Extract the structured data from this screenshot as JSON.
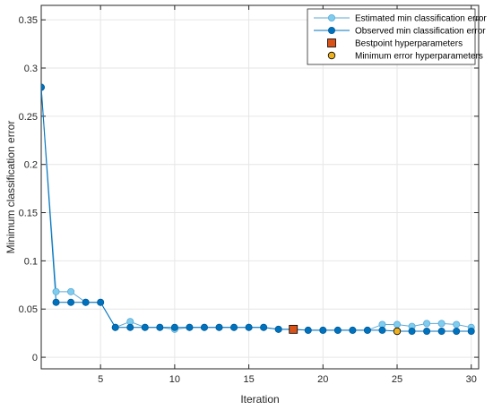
{
  "colors": {
    "estimated": "#7ECDEF",
    "estimated_edge": "#5DA9D6",
    "observed": "#0072BD",
    "observed_edge": "#005A99",
    "bestpoint": "#D95319",
    "minerror": "#EDB120",
    "grid": "#E6E6E6",
    "axis": "#262626",
    "background": "#FFFFFF"
  },
  "chart_data": {
    "type": "line",
    "title": "",
    "xlabel": "Iteration",
    "ylabel": "Minimum classification error",
    "xlim": [
      1,
      30.5
    ],
    "ylim": [
      -0.012,
      0.365
    ],
    "xticks": [
      5,
      10,
      15,
      20,
      25,
      30
    ],
    "yticks": [
      0,
      0.05,
      0.1,
      0.15,
      0.2,
      0.25,
      0.3,
      0.35
    ],
    "ytick_labels": [
      "0",
      "0.05",
      "0.1",
      "0.15",
      "0.2",
      "0.25",
      "0.3",
      "0.35"
    ],
    "grid": true,
    "legend_position": "top-right",
    "series": [
      {
        "name": "Estimated min classification error",
        "x": [
          1,
          2,
          3,
          4,
          5,
          6,
          7,
          8,
          9,
          10,
          11,
          12,
          13,
          14,
          15,
          16,
          17,
          18,
          19,
          20,
          21,
          22,
          23,
          24,
          25,
          26,
          27,
          28,
          29,
          30
        ],
        "values": [
          0.28,
          0.068,
          0.068,
          0.057,
          0.057,
          0.031,
          0.037,
          0.031,
          0.031,
          0.029,
          0.031,
          0.031,
          0.031,
          0.031,
          0.031,
          0.031,
          0.029,
          0.029,
          0.028,
          0.028,
          0.028,
          0.028,
          0.028,
          0.034,
          0.034,
          0.032,
          0.035,
          0.035,
          0.034,
          0.031
        ]
      },
      {
        "name": "Observed min classification error",
        "x": [
          1,
          2,
          3,
          4,
          5,
          6,
          7,
          8,
          9,
          10,
          11,
          12,
          13,
          14,
          15,
          16,
          17,
          18,
          19,
          20,
          21,
          22,
          23,
          24,
          25,
          26,
          27,
          28,
          29,
          30
        ],
        "values": [
          0.28,
          0.057,
          0.057,
          0.057,
          0.057,
          0.031,
          0.031,
          0.031,
          0.031,
          0.031,
          0.031,
          0.031,
          0.031,
          0.031,
          0.031,
          0.031,
          0.029,
          0.029,
          0.028,
          0.028,
          0.028,
          0.028,
          0.028,
          0.028,
          0.027,
          0.027,
          0.027,
          0.027,
          0.027,
          0.027
        ]
      },
      {
        "name": "Bestpoint hyperparameters",
        "x": [
          18
        ],
        "values": [
          0.029
        ]
      },
      {
        "name": "Minimum error hyperparameters",
        "x": [
          25
        ],
        "values": [
          0.027
        ]
      }
    ]
  }
}
